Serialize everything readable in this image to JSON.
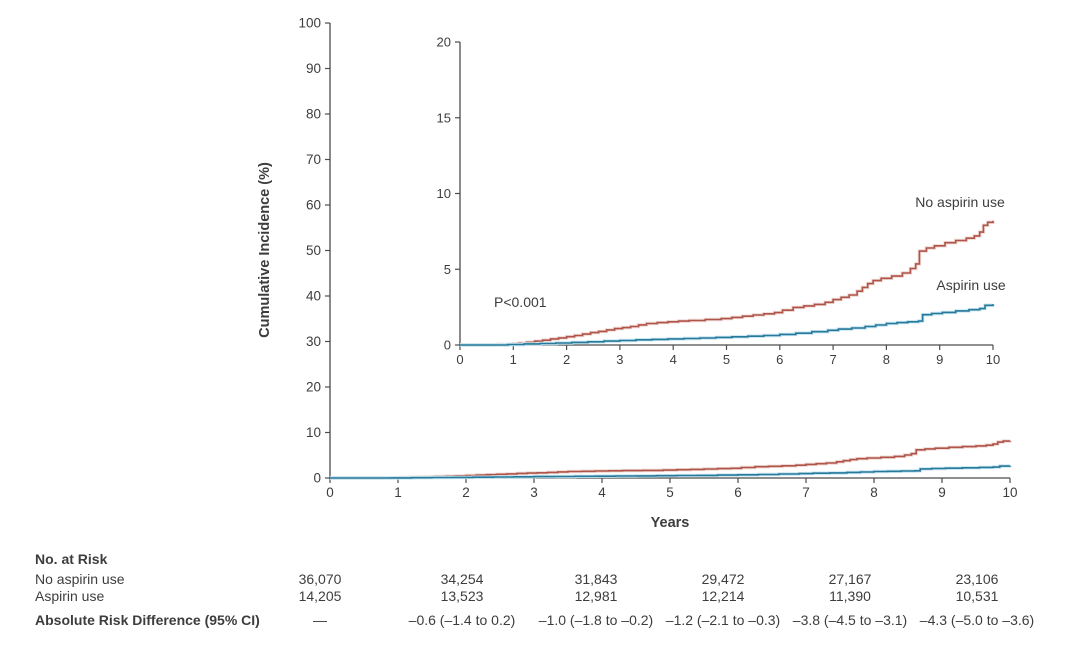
{
  "figure": {
    "ylabel": "Cumulative Incidence (%)",
    "xlabel": "Years",
    "p_value": "P&lt;0.001"
  },
  "chart_data": {
    "type": "line",
    "xlabel": "Years",
    "ylabel": "Cumulative Incidence (%)",
    "annotation": "P<0.001",
    "grid": false,
    "legend_position": "inline-labels",
    "main_axis": {
      "xlim": [
        0,
        10
      ],
      "ylim": [
        0,
        100
      ],
      "xticks": [
        0,
        1,
        2,
        3,
        4,
        5,
        6,
        7,
        8,
        9,
        10
      ],
      "yticks": [
        0,
        10,
        20,
        30,
        40,
        50,
        60,
        70,
        80,
        90,
        100
      ]
    },
    "inset_axis": {
      "xlim": [
        0,
        10
      ],
      "ylim": [
        0,
        20
      ],
      "xticks": [
        0,
        1,
        2,
        3,
        4,
        5,
        6,
        7,
        8,
        9,
        10
      ],
      "yticks": [
        0,
        5,
        10,
        15,
        20
      ]
    },
    "series": [
      {
        "name": "No aspirin use",
        "color": "#b0544a",
        "halo": "#eed8d3",
        "final_value_pct": 8.2,
        "points": [
          [
            0,
            0
          ],
          [
            0.7,
            0.03
          ],
          [
            1.0,
            0.08
          ],
          [
            1.1,
            0.12
          ],
          [
            1.25,
            0.18
          ],
          [
            1.4,
            0.25
          ],
          [
            1.55,
            0.32
          ],
          [
            1.7,
            0.4
          ],
          [
            1.85,
            0.47
          ],
          [
            2.0,
            0.55
          ],
          [
            2.15,
            0.63
          ],
          [
            2.3,
            0.72
          ],
          [
            2.45,
            0.82
          ],
          [
            2.6,
            0.9
          ],
          [
            2.75,
            1.0
          ],
          [
            2.9,
            1.08
          ],
          [
            3.05,
            1.15
          ],
          [
            3.2,
            1.22
          ],
          [
            3.35,
            1.33
          ],
          [
            3.5,
            1.42
          ],
          [
            3.7,
            1.48
          ],
          [
            3.9,
            1.53
          ],
          [
            4.1,
            1.58
          ],
          [
            4.3,
            1.62
          ],
          [
            4.6,
            1.68
          ],
          [
            4.9,
            1.74
          ],
          [
            5.1,
            1.82
          ],
          [
            5.3,
            1.9
          ],
          [
            5.5,
            1.98
          ],
          [
            5.7,
            2.06
          ],
          [
            5.9,
            2.14
          ],
          [
            6.05,
            2.3
          ],
          [
            6.25,
            2.48
          ],
          [
            6.45,
            2.58
          ],
          [
            6.65,
            2.68
          ],
          [
            6.85,
            2.82
          ],
          [
            7.0,
            3.0
          ],
          [
            7.15,
            3.15
          ],
          [
            7.3,
            3.3
          ],
          [
            7.45,
            3.55
          ],
          [
            7.55,
            3.8
          ],
          [
            7.65,
            4.05
          ],
          [
            7.75,
            4.25
          ],
          [
            7.9,
            4.4
          ],
          [
            8.1,
            4.55
          ],
          [
            8.3,
            4.75
          ],
          [
            8.45,
            5.05
          ],
          [
            8.55,
            5.35
          ],
          [
            8.62,
            6.2
          ],
          [
            8.75,
            6.4
          ],
          [
            8.9,
            6.55
          ],
          [
            9.1,
            6.75
          ],
          [
            9.3,
            6.9
          ],
          [
            9.5,
            7.05
          ],
          [
            9.65,
            7.2
          ],
          [
            9.75,
            7.45
          ],
          [
            9.82,
            7.9
          ],
          [
            9.9,
            8.1
          ],
          [
            10,
            8.2
          ]
        ]
      },
      {
        "name": "Aspirin use",
        "color": "#27799b",
        "halo": "#c7e5f0",
        "final_value_pct": 2.7,
        "points": [
          [
            0,
            0
          ],
          [
            0.9,
            0.03
          ],
          [
            1.2,
            0.07
          ],
          [
            1.5,
            0.1
          ],
          [
            1.8,
            0.13
          ],
          [
            2.1,
            0.17
          ],
          [
            2.4,
            0.21
          ],
          [
            2.7,
            0.26
          ],
          [
            3.0,
            0.3
          ],
          [
            3.3,
            0.34
          ],
          [
            3.6,
            0.37
          ],
          [
            3.9,
            0.4
          ],
          [
            4.2,
            0.43
          ],
          [
            4.5,
            0.46
          ],
          [
            4.8,
            0.5
          ],
          [
            5.1,
            0.54
          ],
          [
            5.4,
            0.58
          ],
          [
            5.7,
            0.63
          ],
          [
            6.0,
            0.7
          ],
          [
            6.3,
            0.78
          ],
          [
            6.6,
            0.88
          ],
          [
            6.9,
            0.97
          ],
          [
            7.1,
            1.05
          ],
          [
            7.35,
            1.12
          ],
          [
            7.6,
            1.22
          ],
          [
            7.8,
            1.32
          ],
          [
            8.0,
            1.42
          ],
          [
            8.2,
            1.48
          ],
          [
            8.4,
            1.53
          ],
          [
            8.6,
            1.58
          ],
          [
            8.68,
            2.0
          ],
          [
            8.85,
            2.08
          ],
          [
            9.05,
            2.15
          ],
          [
            9.3,
            2.25
          ],
          [
            9.55,
            2.33
          ],
          [
            9.75,
            2.4
          ],
          [
            9.85,
            2.62
          ],
          [
            10,
            2.7
          ]
        ]
      }
    ]
  },
  "colors": {
    "axis": "#4c4c4e",
    "text": "#3d3d3f"
  },
  "risk_table": {
    "header": "No. at Risk",
    "rows": [
      {
        "label": "No aspirin use",
        "values": [
          "36,070",
          "34,254",
          "31,843",
          "29,472",
          "27,167",
          "23,106"
        ]
      },
      {
        "label": "Aspirin use",
        "values": [
          "14,205",
          "13,523",
          "12,981",
          "12,214",
          "11,390",
          "10,531"
        ]
      }
    ],
    "risk_diff": {
      "label": "Absolute Risk Difference (95% CI)",
      "values": [
        "—",
        "–0.6 (–1.4 to 0.2)",
        "–1.0 (–1.8 to –0.2)",
        "–1.2 (–2.1 to –0.3)",
        "–3.8 (–4.5 to –3.1)",
        "–4.3 (–5.0 to –3.6)"
      ]
    }
  }
}
